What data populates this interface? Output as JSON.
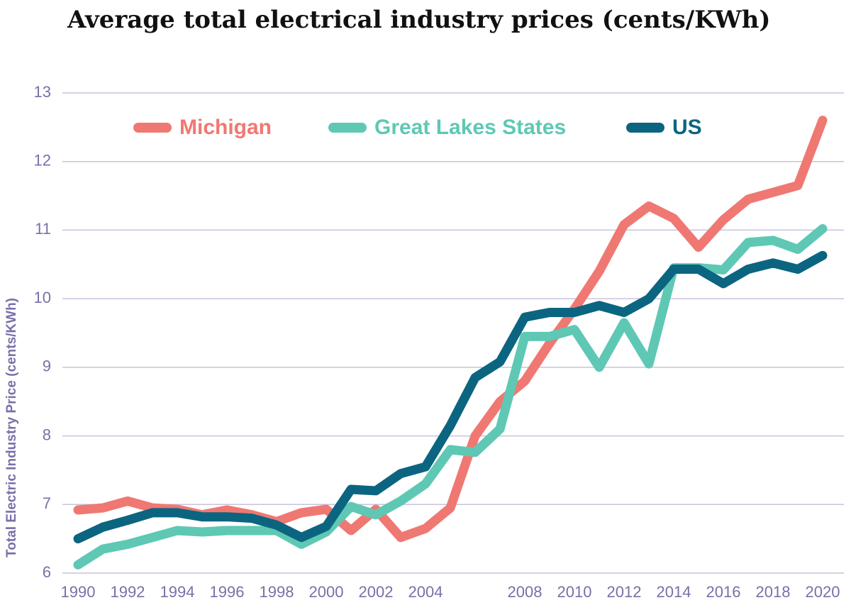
{
  "chart_data": {
    "type": "line",
    "title": "Average total electrical industry prices (cents/KWh)",
    "y_label": "Total Electric Industry Price (cents/KWh)",
    "x": [
      1990,
      1991,
      1992,
      1993,
      1994,
      1995,
      1996,
      1997,
      1998,
      1999,
      2000,
      2001,
      2002,
      2003,
      2004,
      2005,
      2006,
      2007,
      2008,
      2009,
      2010,
      2011,
      2012,
      2013,
      2014,
      2015,
      2016,
      2017,
      2018,
      2019,
      2020
    ],
    "series": [
      {
        "name": "Michigan",
        "color": "#f07872",
        "values": [
          6.92,
          6.95,
          7.05,
          6.95,
          6.93,
          6.85,
          6.92,
          6.85,
          6.75,
          6.88,
          6.93,
          6.62,
          6.93,
          6.52,
          6.65,
          6.95,
          8.0,
          8.5,
          8.8,
          9.35,
          9.85,
          10.4,
          11.08,
          11.35,
          11.17,
          10.75,
          11.15,
          11.45,
          11.55,
          11.65,
          12.6
        ]
      },
      {
        "name": "Great Lakes States",
        "color": "#5ec8b4",
        "values": [
          6.12,
          6.35,
          6.42,
          6.52,
          6.62,
          6.6,
          6.62,
          6.62,
          6.62,
          6.42,
          6.6,
          6.97,
          6.85,
          7.05,
          7.3,
          7.8,
          7.76,
          8.1,
          9.45,
          9.45,
          9.55,
          9.0,
          9.65,
          9.05,
          10.45,
          10.45,
          10.42,
          10.82,
          10.85,
          10.72,
          11.02
        ]
      },
      {
        "name": "US",
        "color": "#0b6580",
        "values": [
          6.5,
          6.67,
          6.77,
          6.88,
          6.88,
          6.82,
          6.82,
          6.8,
          6.7,
          6.52,
          6.68,
          7.22,
          7.2,
          7.45,
          7.55,
          8.15,
          8.85,
          9.08,
          9.73,
          9.8,
          9.8,
          9.9,
          9.8,
          10.0,
          10.43,
          10.43,
          10.22,
          10.43,
          10.52,
          10.43,
          10.63
        ]
      }
    ],
    "xlim": [
      1990,
      2020
    ],
    "xticks": [
      1990,
      1992,
      1994,
      1996,
      1998,
      2000,
      2002,
      2004,
      2008,
      2010,
      2012,
      2014,
      2016,
      2018,
      2020
    ],
    "ylim": [
      6,
      13
    ],
    "yticks": [
      6,
      7,
      8,
      9,
      10,
      11,
      12,
      13
    ],
    "grid": true
  }
}
